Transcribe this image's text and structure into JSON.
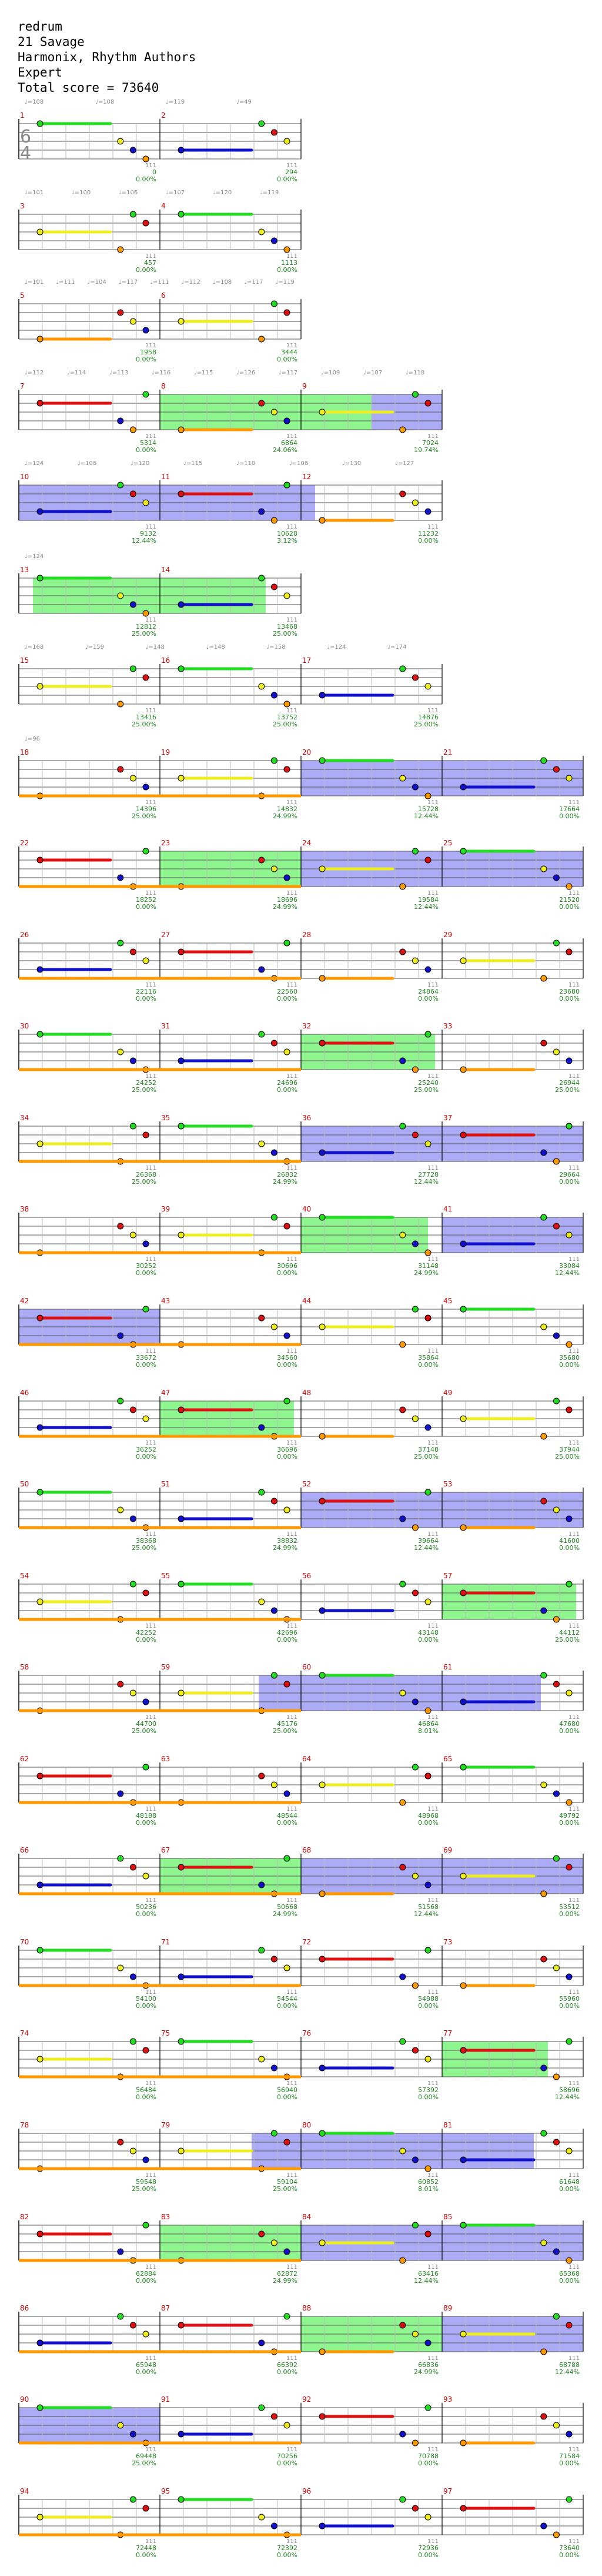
{
  "song": {
    "title": "redrum",
    "artist": "21 Savage",
    "charter": "Harmonix, Rhythm Authors",
    "difficulty": "Expert",
    "total_score_label": "Total score = 73640"
  },
  "time_signature": {
    "top": "6",
    "bottom": "4",
    "alt_top": "4",
    "alt_bottom": "4"
  },
  "colors": {
    "green": "#22dd22",
    "red": "#dd1111",
    "yellow": "#eeee22",
    "blue": "#1111cc",
    "orange": "#ff9900",
    "purple": "#990066",
    "olive": "#996600",
    "starpower": "#33ee33",
    "overdrive": "#6666ee",
    "measure_number": "#cc0000",
    "score_text": "#228822",
    "tempo_text": "#888888"
  },
  "rows": [
    {
      "measures": [
        "1",
        "2"
      ],
      "scores": [
        "0",
        "294"
      ],
      "percents": [
        "0.00%",
        "0.00%"
      ],
      "tempos": [
        "♩=108",
        "♩=108",
        "♩=119",
        "♩=49"
      ]
    },
    {
      "measures": [
        "3",
        "4"
      ],
      "scores": [
        "457",
        "1113"
      ],
      "percents": [
        "0.00%",
        "0.00%"
      ],
      "tempos": [
        "♩=101",
        "♩=100",
        "♩=106",
        "♩=107",
        "♩=120",
        "♩=119"
      ]
    },
    {
      "measures": [
        "5",
        "6"
      ],
      "scores": [
        "1958",
        "3444"
      ],
      "percents": [
        "0.00%",
        "0.00%"
      ],
      "tempos": [
        "♩=101",
        "♩=111",
        "♩=104",
        "♩=117",
        "♩=111",
        "♩=112",
        "♩=108",
        "♩=117",
        "♩=119"
      ]
    },
    {
      "measures": [
        "7",
        "8",
        "9"
      ],
      "scores": [
        "5314",
        "6864",
        "7024"
      ],
      "percents": [
        "0.00%",
        "24.06%",
        "19.74%"
      ],
      "tempos": [
        "♩=112",
        "♩=114",
        "♩=113",
        "♩=116",
        "♩=115",
        "♩=126",
        "♩=117",
        "♩=109",
        "♩=107",
        "♩=118"
      ]
    },
    {
      "measures": [
        "10",
        "11",
        "12"
      ],
      "scores": [
        "9132",
        "10628",
        "11232"
      ],
      "percents": [
        "12.44%",
        "3.12%",
        "0.00%"
      ],
      "tempos": [
        "♩=124",
        "♩=106",
        "♩=120",
        "♩=115",
        "♩=110",
        "♩=106",
        "♩=130",
        "♩=127"
      ]
    },
    {
      "measures": [
        "13",
        "14"
      ],
      "scores": [
        "12812",
        "13468"
      ],
      "percents": [
        "25.00%",
        "25.00%"
      ],
      "tempos": [
        "♩=124"
      ]
    },
    {
      "measures": [
        "15",
        "16",
        "17"
      ],
      "scores": [
        "13416",
        "13752",
        "14876"
      ],
      "percents": [
        "25.00%",
        "25.00%",
        "25.00%"
      ],
      "tempos": [
        "♩=168",
        "♩=159",
        "♩=148",
        "♩=148",
        "♩=158",
        "♩=124",
        "♩=174"
      ]
    },
    {
      "measures": [
        "18",
        "19",
        "20",
        "21"
      ],
      "scores": [
        "14396",
        "14832",
        "15728",
        "17664"
      ],
      "percents": [
        "25.00%",
        "24.99%",
        "12.44%",
        "0.00%"
      ],
      "tempos": [
        "♩=96"
      ]
    },
    {
      "measures": [
        "22",
        "23",
        "24",
        "25"
      ],
      "scores": [
        "18252",
        "18696",
        "19584",
        "21520"
      ],
      "percents": [
        "0.00%",
        "24.99%",
        "12.44%",
        "0.00%"
      ],
      "tempos": []
    },
    {
      "measures": [
        "26",
        "27",
        "28",
        "29"
      ],
      "scores": [
        "22116",
        "22560",
        "24864",
        "23680"
      ],
      "percents": [
        "0.00%",
        "0.00%",
        "0.00%",
        "0.00%"
      ],
      "tempos": []
    },
    {
      "measures": [
        "30",
        "31",
        "32",
        "33"
      ],
      "scores": [
        "24252",
        "24696",
        "25240",
        "26944"
      ],
      "percents": [
        "25.00%",
        "0.00%",
        "25.00%",
        "25.00%"
      ],
      "tempos": []
    },
    {
      "measures": [
        "34",
        "35",
        "36",
        "37"
      ],
      "scores": [
        "26368",
        "26832",
        "27728",
        "29664"
      ],
      "percents": [
        "25.00%",
        "24.99%",
        "12.44%",
        "0.00%"
      ],
      "tempos": []
    },
    {
      "measures": [
        "38",
        "39",
        "40",
        "41"
      ],
      "scores": [
        "30252",
        "30696",
        "31148",
        "33084"
      ],
      "percents": [
        "0.00%",
        "0.00%",
        "24.99%",
        "12.44%"
      ],
      "tempos": []
    },
    {
      "measures": [
        "42",
        "43",
        "44",
        "45"
      ],
      "scores": [
        "33672",
        "34560",
        "35864",
        "35680"
      ],
      "percents": [
        "0.00%",
        "0.00%",
        "0.00%",
        "0.00%"
      ],
      "tempos": []
    },
    {
      "measures": [
        "46",
        "47",
        "48",
        "49"
      ],
      "scores": [
        "36252",
        "36696",
        "37148",
        "37944"
      ],
      "percents": [
        "0.00%",
        "0.00%",
        "25.00%",
        "25.00%"
      ],
      "tempos": []
    },
    {
      "measures": [
        "50",
        "51",
        "52",
        "53"
      ],
      "scores": [
        "38368",
        "38832",
        "39664",
        "41600"
      ],
      "percents": [
        "25.00%",
        "24.99%",
        "12.44%",
        "0.00%"
      ],
      "tempos": []
    },
    {
      "measures": [
        "54",
        "55",
        "56",
        "57"
      ],
      "scores": [
        "42252",
        "42696",
        "43148",
        "44112"
      ],
      "percents": [
        "0.00%",
        "0.00%",
        "0.00%",
        "25.00%"
      ],
      "tempos": []
    },
    {
      "measures": [
        "58",
        "59",
        "60",
        "61"
      ],
      "scores": [
        "44700",
        "45176",
        "46864",
        "47680"
      ],
      "percents": [
        "25.00%",
        "25.00%",
        "8.01%",
        "0.00%"
      ],
      "tempos": []
    },
    {
      "measures": [
        "62",
        "63",
        "64",
        "65"
      ],
      "scores": [
        "48188",
        "48544",
        "48968",
        "49792"
      ],
      "percents": [
        "0.00%",
        "0.00%",
        "0.00%",
        "0.00%"
      ],
      "tempos": []
    },
    {
      "measures": [
        "66",
        "67",
        "68",
        "69"
      ],
      "scores": [
        "50236",
        "50668",
        "51568",
        "53512"
      ],
      "percents": [
        "0.00%",
        "24.99%",
        "12.44%",
        "0.00%"
      ],
      "tempos": []
    },
    {
      "measures": [
        "70",
        "71",
        "72",
        "73"
      ],
      "scores": [
        "54100",
        "54544",
        "54988",
        "55960"
      ],
      "percents": [
        "0.00%",
        "0.00%",
        "0.00%",
        "0.00%"
      ],
      "tempos": []
    },
    {
      "measures": [
        "74",
        "75",
        "76",
        "77"
      ],
      "scores": [
        "56484",
        "56940",
        "57392",
        "58696"
      ],
      "percents": [
        "0.00%",
        "0.00%",
        "0.00%",
        "12.44%"
      ],
      "tempos": []
    },
    {
      "measures": [
        "78",
        "79",
        "80",
        "81"
      ],
      "scores": [
        "59548",
        "59104",
        "60852",
        "61648"
      ],
      "percents": [
        "25.00%",
        "25.00%",
        "8.01%",
        "0.00%"
      ],
      "tempos": []
    },
    {
      "measures": [
        "82",
        "83",
        "84",
        "85"
      ],
      "scores": [
        "62884",
        "62872",
        "63416",
        "65368"
      ],
      "percents": [
        "0.00%",
        "24.99%",
        "12.44%",
        "0.00%"
      ],
      "tempos": []
    },
    {
      "measures": [
        "86",
        "87",
        "88",
        "89"
      ],
      "scores": [
        "65948",
        "66392",
        "66836",
        "68788"
      ],
      "percents": [
        "0.00%",
        "0.00%",
        "24.99%",
        "12.44%"
      ],
      "tempos": []
    },
    {
      "measures": [
        "90",
        "91",
        "92",
        "93"
      ],
      "scores": [
        "69448",
        "70256",
        "70788",
        "71584"
      ],
      "percents": [
        "25.00%",
        "0.00%",
        "0.00%",
        "0.00%"
      ],
      "tempos": []
    },
    {
      "measures": [
        "94",
        "95",
        "96",
        "97"
      ],
      "scores": [
        "72448",
        "72392",
        "72936",
        "73640"
      ],
      "percents": [
        "0.00%",
        "0.00%",
        "0.00%",
        "0.00%"
      ],
      "tempos": []
    }
  ]
}
